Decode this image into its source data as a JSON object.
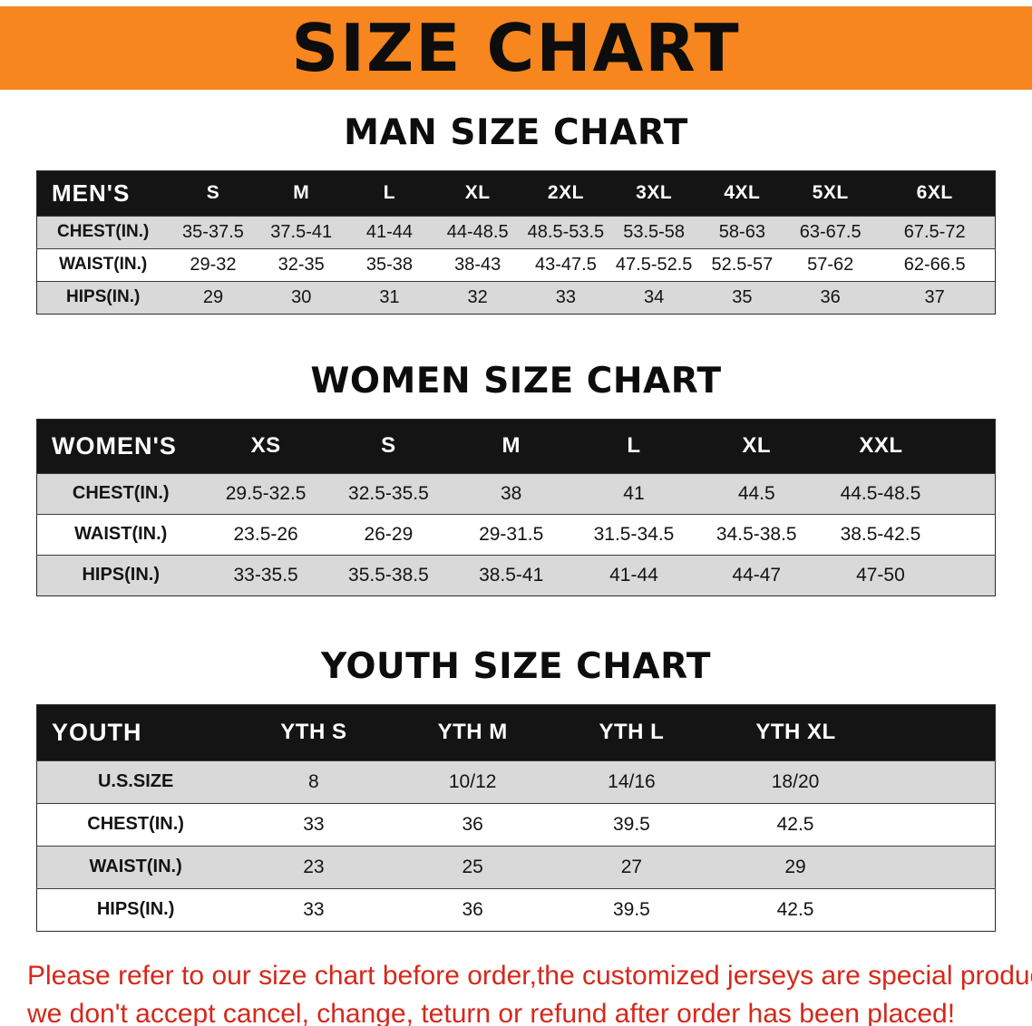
{
  "banner": {
    "title": "SIZE CHART",
    "bg_color": "#F6861D",
    "text_color": "#0D0D0D"
  },
  "colors": {
    "table_header_bg": "#141414",
    "table_header_text": "#FFFFFF",
    "row_alt_bg": "#D9D9D9",
    "disclaimer_text": "#D5281B"
  },
  "sections": [
    {
      "heading": "MAN SIZE CHART",
      "table": {
        "header": [
          "MEN'S",
          "S",
          "M",
          "L",
          "XL",
          "2XL",
          "3XL",
          "4XL",
          "5XL",
          "6XL"
        ],
        "rows": [
          [
            "CHEST(IN.)",
            "35-37.5",
            "37.5-41",
            "41-44",
            "44-48.5",
            "48.5-53.5",
            "53.5-58",
            "58-63",
            "63-67.5",
            "67.5-72"
          ],
          [
            "WAIST(IN.)",
            "29-32",
            "32-35",
            "35-38",
            "38-43",
            "43-47.5",
            "47.5-52.5",
            "52.5-57",
            "57-62",
            "62-66.5"
          ],
          [
            "HIPS(IN.)",
            "29",
            "30",
            "31",
            "32",
            "33",
            "34",
            "35",
            "36",
            "37"
          ]
        ]
      }
    },
    {
      "heading": "WOMEN SIZE CHART",
      "table": {
        "header": [
          "WOMEN'S",
          "XS",
          "S",
          "M",
          "L",
          "XL",
          "XXL"
        ],
        "rows": [
          [
            "CHEST(IN.)",
            "29.5-32.5",
            "32.5-35.5",
            "38",
            "41",
            "44.5",
            "44.5-48.5"
          ],
          [
            "WAIST(IN.)",
            "23.5-26",
            "26-29",
            "29-31.5",
            "31.5-34.5",
            "34.5-38.5",
            "38.5-42.5"
          ],
          [
            "HIPS(IN.)",
            "33-35.5",
            "35.5-38.5",
            "38.5-41",
            "41-44",
            "44-47",
            "47-50"
          ]
        ]
      }
    },
    {
      "heading": "YOUTH SIZE CHART",
      "table": {
        "header": [
          "YOUTH",
          "YTH S",
          "YTH M",
          "YTH L",
          "YTH XL"
        ],
        "rows": [
          [
            "U.S.SIZE",
            "8",
            "10/12",
            "14/16",
            "18/20"
          ],
          [
            "CHEST(IN.)",
            "33",
            "36",
            "39.5",
            "42.5"
          ],
          [
            "WAIST(IN.)",
            "23",
            "25",
            "27",
            "29"
          ],
          [
            "HIPS(IN.)",
            "33",
            "36",
            "39.5",
            "42.5"
          ]
        ]
      }
    }
  ],
  "disclaimer": {
    "lines": [
      "Please refer to our size chart before order,the customized jerseys are special products,",
      "we don't accept cancel, change, teturn or refund after order has been placed!"
    ]
  }
}
